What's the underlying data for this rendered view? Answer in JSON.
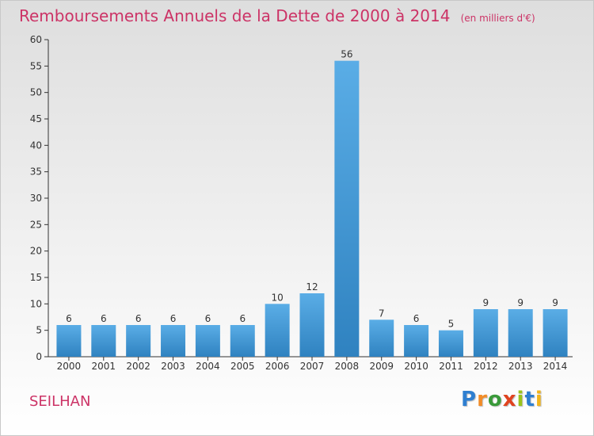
{
  "header": {
    "title": "Remboursements Annuels de la Dette de 2000 à 2014",
    "unit": "(en milliers d'€)"
  },
  "footer": {
    "commune": "SEILHAN",
    "logo": [
      "P",
      "r",
      "o",
      "x",
      "i",
      "t",
      "i"
    ]
  },
  "colors": {
    "title": "#cc3366",
    "bar_light": "#5aade6",
    "bar_dark": "#2f82c0",
    "axis": "#333333"
  },
  "chart_data": {
    "type": "bar",
    "title": "Remboursements Annuels de la Dette de 2000 à 2014",
    "unit": "(en milliers d'€)",
    "categories": [
      "2000",
      "2001",
      "2002",
      "2003",
      "2004",
      "2005",
      "2006",
      "2007",
      "2008",
      "2009",
      "2010",
      "2011",
      "2012",
      "2013",
      "2014"
    ],
    "values": [
      6,
      6,
      6,
      6,
      6,
      6,
      10,
      12,
      56,
      7,
      6,
      5,
      9,
      9,
      9
    ],
    "ylim": [
      0,
      60
    ],
    "yticks": [
      0,
      5,
      10,
      15,
      20,
      25,
      30,
      35,
      40,
      45,
      50,
      55,
      60
    ],
    "grid": false,
    "legend": "none"
  }
}
